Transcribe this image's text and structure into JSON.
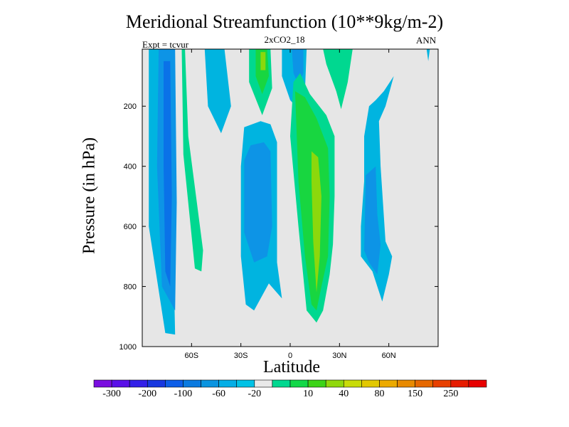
{
  "chart_data": {
    "type": "heatmap",
    "title": "Meridional Streamfunction (10**9kg/m-2)",
    "subtitle": "2xCO2_18",
    "left_label": "Expt = tcvur",
    "right_label": "ANN",
    "xlabel": "Latitude",
    "ylabel": "Pressure (in hPa)",
    "xlim": [
      -90,
      90
    ],
    "ylim": [
      1000,
      10
    ],
    "x_ticks": [
      {
        "value": -60,
        "label": "60S"
      },
      {
        "value": -30,
        "label": "30S"
      },
      {
        "value": 0,
        "label": "0"
      },
      {
        "value": 30,
        "label": "30N"
      },
      {
        "value": 60,
        "label": "60N"
      }
    ],
    "y_ticks": [
      {
        "value": 200,
        "label": "200"
      },
      {
        "value": 400,
        "label": "400"
      },
      {
        "value": 600,
        "label": "600"
      },
      {
        "value": 800,
        "label": "800"
      },
      {
        "value": 1000,
        "label": "1000"
      }
    ],
    "background_level_color": "#e6e6e6",
    "colorbar": {
      "colors": [
        "#7a0ee0",
        "#5a10e8",
        "#3320e8",
        "#1838e0",
        "#0d5ee8",
        "#0b7ae0",
        "#0a94e0",
        "#04aee6",
        "#00c2e6",
        "#e9e9e9",
        "#00d890",
        "#12d848",
        "#3cd418",
        "#90d80c",
        "#c8dc08",
        "#e2c800",
        "#ecaa00",
        "#e88a00",
        "#e66800",
        "#e84000",
        "#e61c00",
        "#e80000"
      ],
      "labels": [
        "-300",
        "-200",
        "-100",
        "-60",
        "-20",
        "10",
        "40",
        "80",
        "150",
        "250"
      ]
    },
    "regions": [
      {
        "level": "-20",
        "color": "#00b4e0",
        "points": [
          [
            -86,
            10
          ],
          [
            -72,
            10
          ],
          [
            -72,
            440
          ],
          [
            -70,
            960
          ],
          [
            -76,
            955
          ],
          [
            -86,
            600
          ],
          [
            -86,
            10
          ]
        ]
      },
      {
        "level": "-60",
        "color": "#0d94e6",
        "points": [
          [
            -80,
            10
          ],
          [
            -70,
            10
          ],
          [
            -69,
            520
          ],
          [
            -70,
            880
          ],
          [
            -78,
            800
          ],
          [
            -81,
            400
          ],
          [
            -80,
            10
          ]
        ]
      },
      {
        "level": "-100",
        "color": "#0a72e8",
        "points": [
          [
            -77,
            50
          ],
          [
            -73,
            50
          ],
          [
            -72,
            500
          ],
          [
            -73,
            800
          ],
          [
            -76,
            750
          ],
          [
            -77,
            400
          ],
          [
            -77,
            50
          ]
        ]
      },
      {
        "level": "10",
        "color": "#00d890",
        "points": [
          [
            -66,
            10
          ],
          [
            -64,
            10
          ],
          [
            -62,
            300
          ],
          [
            -53,
            680
          ],
          [
            -54,
            750
          ],
          [
            -58,
            740
          ],
          [
            -65,
            360
          ],
          [
            -66,
            10
          ]
        ]
      },
      {
        "level": "-20",
        "color": "#00b4e0",
        "points": [
          [
            -52,
            10
          ],
          [
            -40,
            10
          ],
          [
            -36,
            200
          ],
          [
            -42,
            290
          ],
          [
            -50,
            200
          ],
          [
            -52,
            10
          ]
        ]
      },
      {
        "level": "10",
        "color": "#00d890",
        "points": [
          [
            -25,
            10
          ],
          [
            -12,
            10
          ],
          [
            -11,
            140
          ],
          [
            -17,
            230
          ],
          [
            -25,
            120
          ],
          [
            -25,
            10
          ]
        ]
      },
      {
        "level": "40",
        "color": "#18d640",
        "points": [
          [
            -21,
            10
          ],
          [
            -14,
            10
          ],
          [
            -13,
            100
          ],
          [
            -17,
            160
          ],
          [
            -21,
            100
          ],
          [
            -21,
            10
          ]
        ]
      },
      {
        "level": "80",
        "color": "#8cd80c",
        "points": [
          [
            -18,
            20
          ],
          [
            -15,
            20
          ],
          [
            -15,
            80
          ],
          [
            -18,
            80
          ],
          [
            -18,
            20
          ]
        ]
      },
      {
        "level": "-20",
        "color": "#00b4e0",
        "points": [
          [
            -30,
            400
          ],
          [
            -28,
            270
          ],
          [
            -18,
            250
          ],
          [
            -12,
            260
          ],
          [
            -8,
            320
          ],
          [
            -8,
            720
          ],
          [
            -5,
            840
          ],
          [
            -13,
            790
          ],
          [
            -22,
            880
          ],
          [
            -27,
            860
          ],
          [
            -30,
            700
          ],
          [
            -30,
            400
          ]
        ]
      },
      {
        "level": "-60",
        "color": "#0d94e6",
        "points": [
          [
            -28,
            380
          ],
          [
            -24,
            330
          ],
          [
            -16,
            320
          ],
          [
            -12,
            350
          ],
          [
            -11,
            600
          ],
          [
            -14,
            700
          ],
          [
            -22,
            720
          ],
          [
            -28,
            620
          ],
          [
            -28,
            380
          ]
        ]
      },
      {
        "level": "-20",
        "color": "#00b4e0",
        "points": [
          [
            -5,
            10
          ],
          [
            10,
            10
          ],
          [
            9,
            150
          ],
          [
            5,
            210
          ],
          [
            0,
            180
          ],
          [
            -5,
            100
          ],
          [
            -5,
            10
          ]
        ]
      },
      {
        "level": "-60",
        "color": "#0d94e6",
        "points": [
          [
            1,
            10
          ],
          [
            8,
            10
          ],
          [
            8,
            90
          ],
          [
            5,
            130
          ],
          [
            2,
            90
          ],
          [
            1,
            10
          ]
        ]
      },
      {
        "level": "10",
        "color": "#00d890",
        "points": [
          [
            2,
            120
          ],
          [
            6,
            90
          ],
          [
            12,
            160
          ],
          [
            22,
            230
          ],
          [
            27,
            300
          ],
          [
            27,
            500
          ],
          [
            26,
            660
          ],
          [
            24,
            760
          ],
          [
            20,
            880
          ],
          [
            16,
            920
          ],
          [
            10,
            880
          ],
          [
            5,
            600
          ],
          [
            0,
            300
          ],
          [
            2,
            120
          ]
        ]
      },
      {
        "level": "40",
        "color": "#18d640",
        "points": [
          [
            3,
            150
          ],
          [
            9,
            170
          ],
          [
            16,
            240
          ],
          [
            23,
            340
          ],
          [
            24,
            500
          ],
          [
            23,
            700
          ],
          [
            19,
            800
          ],
          [
            16,
            880
          ],
          [
            13,
            860
          ],
          [
            9,
            700
          ],
          [
            5,
            450
          ],
          [
            3,
            150
          ]
        ]
      },
      {
        "level": "80",
        "color": "#8cd80c",
        "points": [
          [
            13,
            350
          ],
          [
            17,
            370
          ],
          [
            19,
            500
          ],
          [
            18,
            700
          ],
          [
            16,
            820
          ],
          [
            14,
            650
          ],
          [
            13,
            450
          ],
          [
            13,
            350
          ]
        ]
      },
      {
        "level": "10",
        "color": "#00d890",
        "points": [
          [
            20,
            10
          ],
          [
            38,
            10
          ],
          [
            35,
            120
          ],
          [
            31,
            210
          ],
          [
            28,
            150
          ],
          [
            22,
            60
          ],
          [
            20,
            10
          ]
        ]
      },
      {
        "level": "-20",
        "color": "#00b4e0",
        "points": [
          [
            44,
            10
          ],
          [
            65,
            10
          ],
          [
            63,
            100
          ],
          [
            57,
            150
          ],
          [
            52,
            180
          ],
          [
            48,
            200
          ],
          [
            45,
            300
          ],
          [
            45,
            450
          ],
          [
            43,
            600
          ],
          [
            43,
            700
          ],
          [
            50,
            750
          ],
          [
            56,
            850
          ],
          [
            60,
            760
          ],
          [
            62,
            700
          ],
          [
            58,
            650
          ],
          [
            55,
            400
          ],
          [
            54,
            250
          ],
          [
            58,
            200
          ],
          [
            61,
            140
          ],
          [
            63,
            100
          ],
          [
            65,
            10
          ]
        ]
      },
      {
        "level": "-60",
        "color": "#0d94e6",
        "points": [
          [
            46,
            430
          ],
          [
            52,
            400
          ],
          [
            53,
            560
          ],
          [
            55,
            660
          ],
          [
            53,
            760
          ],
          [
            48,
            720
          ],
          [
            45,
            680
          ],
          [
            46,
            430
          ]
        ]
      },
      {
        "level": "-20",
        "color": "#00b4e0",
        "points": [
          [
            83,
            10
          ],
          [
            85,
            10
          ],
          [
            84,
            50
          ],
          [
            83,
            10
          ]
        ]
      }
    ]
  }
}
